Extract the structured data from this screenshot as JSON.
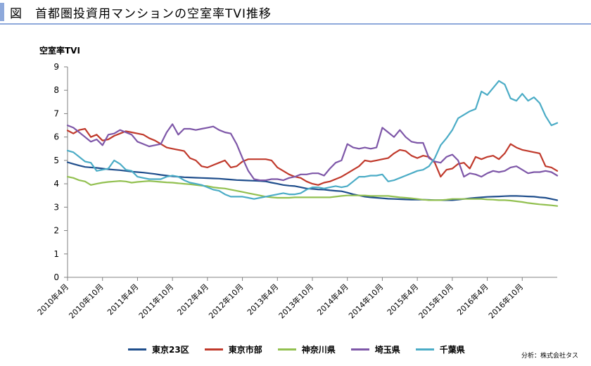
{
  "header": {
    "title": "図　首都圏投資用マンションの空室率TVI推移"
  },
  "source": "分析：株式会社タス",
  "chart_data": {
    "type": "line",
    "title": "首都圏投資用マンションの空室率TVI推移",
    "ylabel": "空室率TVI",
    "xlabel": "",
    "ylim": [
      0,
      9
    ],
    "yticks": [
      0,
      1,
      2,
      3,
      4,
      5,
      6,
      7,
      8,
      9
    ],
    "grid": false,
    "legend_position": "bottom",
    "x_tick_labels": [
      "2010年4月",
      "2010年10月",
      "2011年4月",
      "2011年10月",
      "2012年4月",
      "2012年10月",
      "2013年4月",
      "2013年10月",
      "2014年4月",
      "2014年10月",
      "2015年4月",
      "2015年10月",
      "2016年4月",
      "2016年10月"
    ],
    "x_start": "2010-04",
    "x_end": "2017-04",
    "series": [
      {
        "name": "東京23区",
        "color": "#1f4e8c",
        "values": [
          4.92,
          4.85,
          4.78,
          4.72,
          4.7,
          4.68,
          4.65,
          4.62,
          4.6,
          4.58,
          4.55,
          4.52,
          4.5,
          4.48,
          4.45,
          4.42,
          4.38,
          4.35,
          4.32,
          4.3,
          4.28,
          4.27,
          4.26,
          4.25,
          4.24,
          4.23,
          4.22,
          4.2,
          4.18,
          4.16,
          4.15,
          4.14,
          4.13,
          4.12,
          4.1,
          4.05,
          4.0,
          3.95,
          3.92,
          3.9,
          3.85,
          3.8,
          3.78,
          3.76,
          3.75,
          3.72,
          3.7,
          3.68,
          3.62,
          3.55,
          3.5,
          3.45,
          3.42,
          3.4,
          3.38,
          3.36,
          3.35,
          3.34,
          3.33,
          3.32,
          3.32,
          3.32,
          3.31,
          3.3,
          3.3,
          3.3,
          3.3,
          3.32,
          3.35,
          3.38,
          3.4,
          3.42,
          3.44,
          3.45,
          3.46,
          3.47,
          3.48,
          3.48,
          3.47,
          3.46,
          3.45,
          3.42,
          3.4,
          3.35,
          3.3
        ]
      },
      {
        "name": "東京市部",
        "color": "#c0392b",
        "values": [
          6.28,
          6.15,
          6.3,
          6.35,
          6.0,
          6.1,
          5.85,
          5.9,
          6.05,
          6.15,
          6.25,
          6.2,
          6.15,
          6.1,
          5.95,
          5.85,
          5.7,
          5.55,
          5.5,
          5.45,
          5.4,
          5.1,
          5.0,
          4.75,
          4.7,
          4.8,
          4.9,
          5.0,
          4.7,
          4.75,
          4.95,
          5.05,
          5.05,
          5.05,
          5.05,
          5.0,
          4.7,
          4.55,
          4.4,
          4.3,
          4.25,
          4.1,
          4.0,
          3.95,
          4.05,
          4.1,
          4.2,
          4.3,
          4.45,
          4.6,
          4.75,
          5.0,
          4.95,
          5.0,
          5.05,
          5.1,
          5.3,
          5.45,
          5.4,
          5.2,
          5.1,
          5.2,
          5.15,
          4.9,
          4.3,
          4.6,
          4.65,
          4.85,
          4.9,
          4.65,
          5.15,
          5.05,
          5.15,
          5.2,
          5.05,
          5.3,
          5.7,
          5.55,
          5.45,
          5.4,
          5.35,
          5.3,
          4.75,
          4.7,
          4.55
        ]
      },
      {
        "name": "神奈川県",
        "color": "#92c050",
        "values": [
          4.3,
          4.25,
          4.15,
          4.1,
          3.95,
          4.0,
          4.05,
          4.08,
          4.1,
          4.12,
          4.1,
          4.05,
          4.08,
          4.1,
          4.12,
          4.1,
          4.08,
          4.06,
          4.05,
          4.02,
          4.0,
          3.98,
          3.95,
          3.92,
          3.9,
          3.85,
          3.82,
          3.8,
          3.75,
          3.7,
          3.65,
          3.6,
          3.55,
          3.5,
          3.45,
          3.42,
          3.4,
          3.4,
          3.4,
          3.42,
          3.42,
          3.42,
          3.42,
          3.42,
          3.42,
          3.42,
          3.45,
          3.48,
          3.5,
          3.5,
          3.5,
          3.5,
          3.48,
          3.48,
          3.48,
          3.48,
          3.45,
          3.42,
          3.4,
          3.38,
          3.35,
          3.32,
          3.3,
          3.3,
          3.3,
          3.32,
          3.35,
          3.35,
          3.35,
          3.35,
          3.35,
          3.35,
          3.33,
          3.32,
          3.3,
          3.3,
          3.28,
          3.25,
          3.22,
          3.18,
          3.15,
          3.12,
          3.1,
          3.08,
          3.05
        ]
      },
      {
        "name": "埼玉県",
        "color": "#7e57a8",
        "values": [
          6.5,
          6.4,
          6.2,
          6.0,
          5.8,
          5.9,
          5.65,
          6.1,
          6.15,
          6.3,
          6.2,
          6.1,
          5.8,
          5.7,
          5.6,
          5.65,
          5.7,
          6.2,
          6.55,
          6.1,
          6.35,
          6.35,
          6.3,
          6.35,
          6.4,
          6.45,
          6.3,
          6.2,
          6.15,
          5.7,
          5.1,
          4.55,
          4.2,
          4.15,
          4.15,
          4.2,
          4.2,
          4.15,
          4.25,
          4.3,
          4.4,
          4.4,
          4.45,
          4.45,
          4.35,
          4.65,
          4.9,
          5.0,
          5.7,
          5.55,
          5.5,
          5.55,
          5.5,
          5.55,
          6.4,
          6.2,
          6.0,
          6.3,
          6.0,
          5.8,
          5.75,
          5.75,
          5.1,
          4.95,
          4.9,
          5.15,
          5.25,
          5.0,
          4.3,
          4.45,
          4.4,
          4.3,
          4.45,
          4.55,
          4.5,
          4.55,
          4.7,
          4.75,
          4.6,
          4.45,
          4.5,
          4.5,
          4.55,
          4.5,
          4.35
        ]
      },
      {
        "name": "千葉県",
        "color": "#4bacc6",
        "values": [
          5.42,
          5.35,
          5.15,
          4.95,
          4.9,
          4.55,
          4.6,
          4.65,
          5.0,
          4.85,
          4.6,
          4.55,
          4.3,
          4.25,
          4.2,
          4.2,
          4.2,
          4.3,
          4.35,
          4.3,
          4.15,
          4.05,
          4.0,
          3.95,
          3.85,
          3.75,
          3.7,
          3.55,
          3.45,
          3.45,
          3.45,
          3.4,
          3.35,
          3.4,
          3.45,
          3.5,
          3.55,
          3.6,
          3.55,
          3.55,
          3.6,
          3.75,
          3.85,
          3.85,
          3.8,
          3.85,
          3.9,
          3.85,
          3.9,
          4.1,
          4.3,
          4.3,
          4.35,
          4.35,
          4.4,
          4.1,
          4.15,
          4.25,
          4.35,
          4.45,
          4.55,
          4.6,
          4.75,
          5.1,
          5.65,
          5.95,
          6.3,
          6.8,
          6.95,
          7.1,
          7.2,
          7.95,
          7.8,
          8.1,
          8.4,
          8.25,
          7.65,
          7.55,
          7.85,
          7.55,
          7.7,
          7.45,
          6.9,
          6.5,
          6.6
        ]
      }
    ]
  },
  "legend": [
    {
      "label": "東京23区",
      "color": "#1f4e8c"
    },
    {
      "label": "東京市部",
      "color": "#c0392b"
    },
    {
      "label": "神奈川県",
      "color": "#92c050"
    },
    {
      "label": "埼玉県",
      "color": "#7e57a8"
    },
    {
      "label": "千葉県",
      "color": "#4bacc6"
    }
  ]
}
